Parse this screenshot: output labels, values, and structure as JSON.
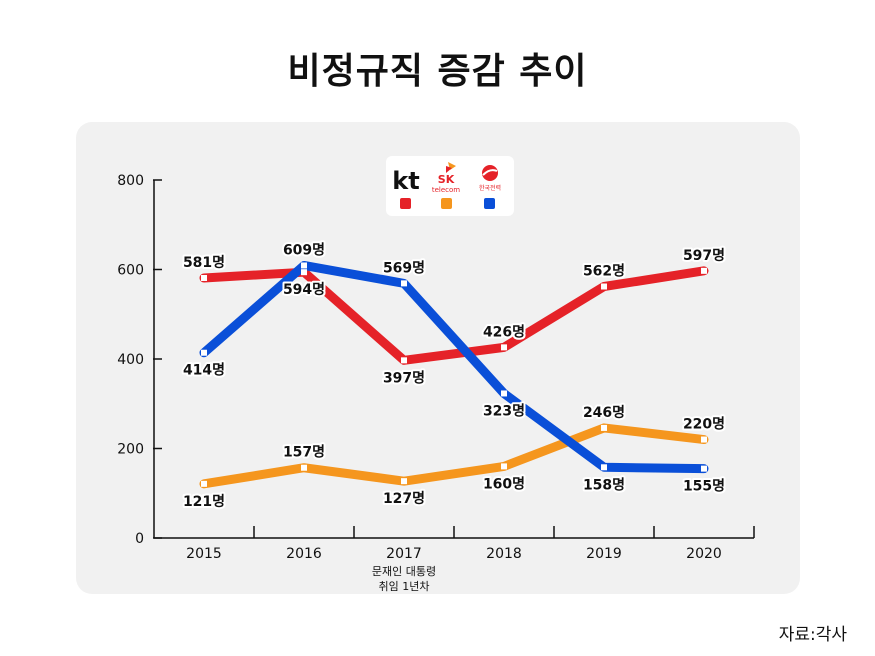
{
  "title": "비정규직 증감 추이",
  "source": "자료:각사",
  "chart_data": {
    "type": "line",
    "categories": [
      "2015",
      "2016",
      "2017",
      "2018",
      "2019",
      "2020"
    ],
    "category_notes": {
      "2017": [
        "문재인 대통령",
        "취임 1년차"
      ]
    },
    "ylim": [
      0,
      800
    ],
    "yticks": [
      0,
      200,
      400,
      600,
      800
    ],
    "unit_suffix": "명",
    "legend_position": "top-center",
    "series": [
      {
        "name": "kt",
        "color": "#e52228",
        "values": [
          581,
          594,
          397,
          426,
          562,
          597
        ]
      },
      {
        "name": "SK telecom",
        "color": "#f5961e",
        "values": [
          121,
          157,
          127,
          160,
          246,
          220
        ]
      },
      {
        "name": "한국전력",
        "color": "#0a4fd8",
        "values": [
          414,
          609,
          569,
          323,
          158,
          155
        ]
      }
    ]
  },
  "legend": {
    "kt_logo": "kt",
    "sk_logo_top": "SK",
    "sk_logo_bottom": "telecom",
    "kepco_logo": "한국전력"
  }
}
